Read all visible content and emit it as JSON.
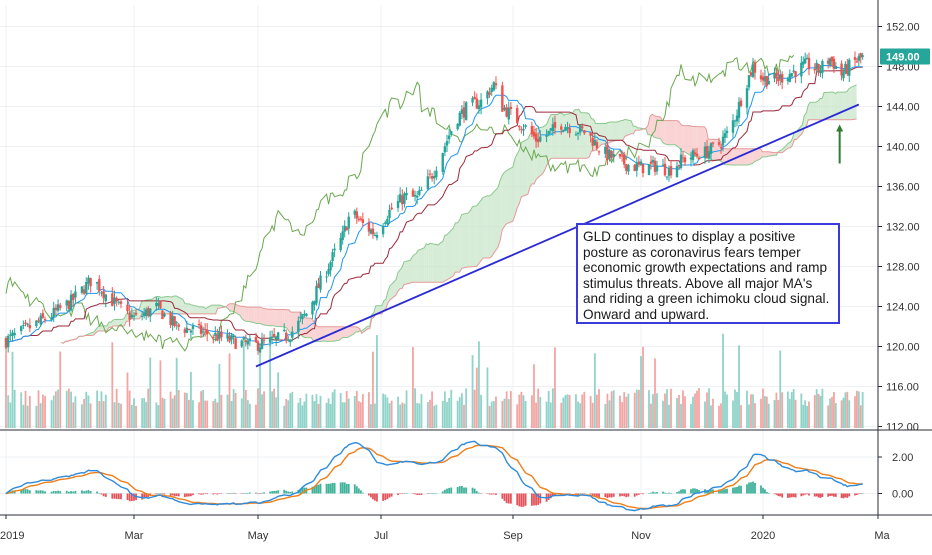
{
  "chart_data": {
    "type": "candlestick",
    "x_ticks": [
      "2019",
      "Mar",
      "May",
      "Jul",
      "Sep",
      "Nov",
      "2020",
      "Ma"
    ],
    "y_ticks": [
      "152.00",
      "148.00",
      "144.00",
      "140.00",
      "136.00",
      "132.00",
      "128.00",
      "124.00",
      "120.00",
      "116.00",
      "112.00"
    ],
    "ylim": [
      111,
      153
    ],
    "last_price_label": "149.00",
    "oscillator_ticks": [
      "2.00",
      "0.00"
    ],
    "oscillator_ylim": [
      -1.6,
      3.2
    ],
    "grid": true,
    "colors": {
      "up": "#26a69a",
      "down": "#ef5350",
      "trendline": "#2a2ad6",
      "price_badge": "#26a69a",
      "cloud_green": "#c8e6c9",
      "cloud_red": "#f8c6c6",
      "lagging_span": "#6aa84f",
      "tenkan": "#2196f3",
      "kijun": "#9c2a3a",
      "macd": "#2e8bdc",
      "signal": "#ef7f1a"
    },
    "trendline": {
      "start": [
        "Apr 30",
        118.0
      ],
      "end": [
        "Feb 20",
        144.2
      ]
    },
    "arrow": {
      "date": "Feb 10",
      "from": 138.3,
      "to": 142.0
    }
  },
  "annotation": {
    "text": "GLD continues to display a positive posture as coronavirus fears temper economic growth expectations and ramp stimulus threats. Above all major MA's and riding a green ichimoku cloud signal. Onward and upward."
  }
}
